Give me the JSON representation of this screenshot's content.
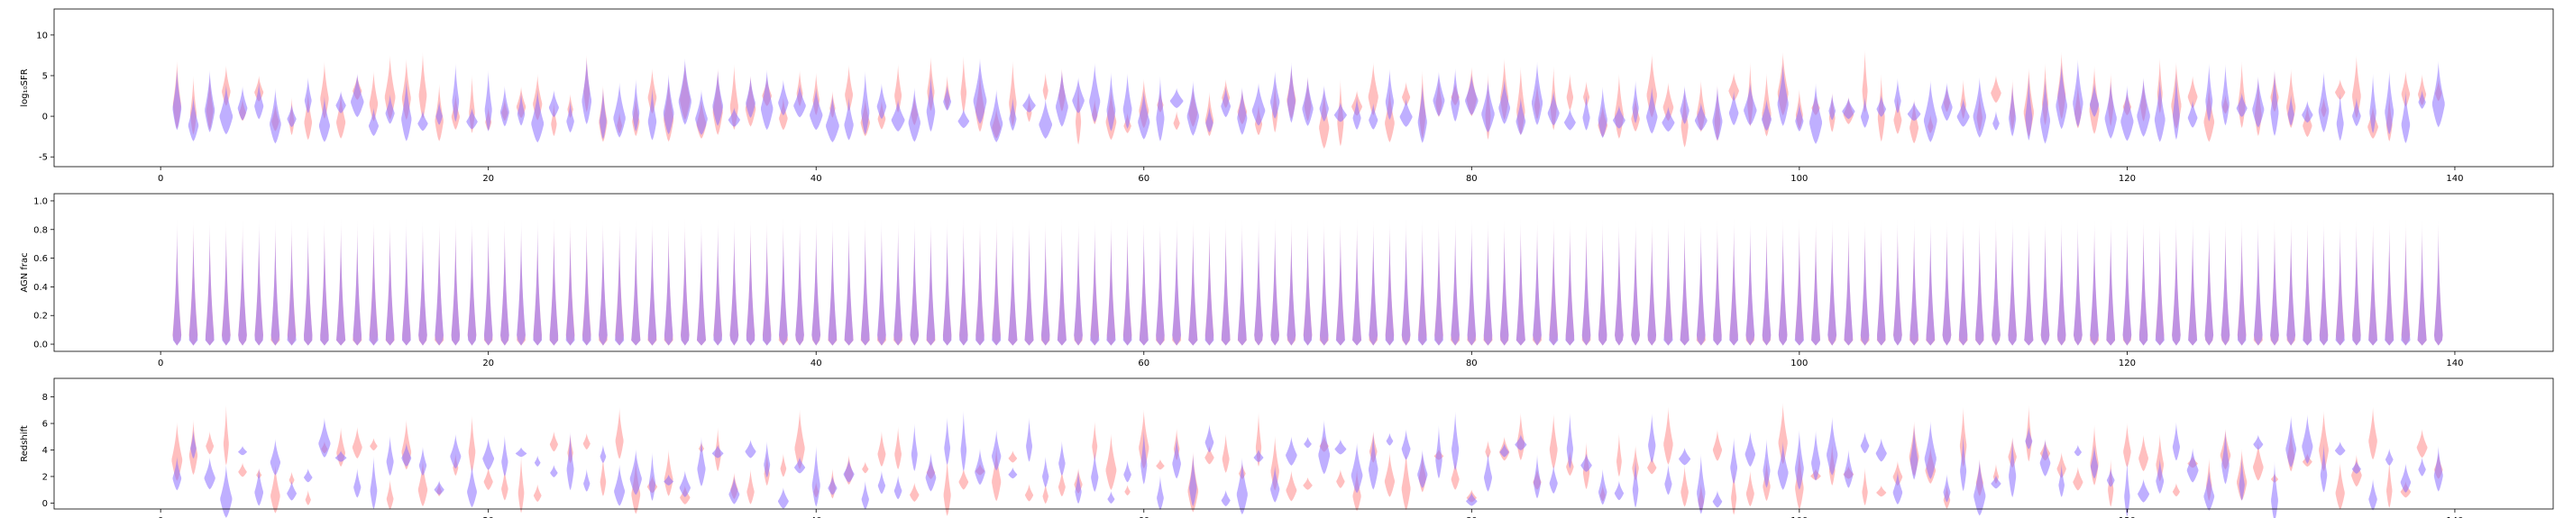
{
  "chart_data": [
    {
      "type": "violin",
      "ylabel": "log₁₀SFR",
      "xlim": [
        -6.5,
        146
      ],
      "ylim": [
        -6.2,
        13.2
      ],
      "xticks": [
        0,
        20,
        40,
        60,
        80,
        100,
        120,
        140
      ],
      "yticks": [
        -5,
        0,
        5,
        10
      ],
      "x": [
        1,
        139
      ],
      "series": [
        {
          "color": "#ff8a8a",
          "median_range": [
            -1.5,
            3.2
          ],
          "max_width": 0.72
        },
        {
          "color": "#8a6dff",
          "median_range": [
            -1.2,
            2.0
          ],
          "max_width": 0.9
        }
      ]
    },
    {
      "type": "violin",
      "ylabel": "AGN frac",
      "xlim": [
        -6.5,
        146
      ],
      "ylim": [
        -0.05,
        1.05
      ],
      "xticks": [
        0,
        20,
        40,
        60,
        80,
        100,
        120,
        140
      ],
      "yticks": [
        0.0,
        0.2,
        0.4,
        0.6,
        0.8,
        1.0
      ],
      "x": [
        1,
        139
      ],
      "series": [
        {
          "color": "#ff8a8a",
          "range": [
            0.0,
            0.9
          ],
          "max_width": 0.72
        },
        {
          "color": "#8a6dff",
          "range": [
            0.0,
            0.9
          ],
          "max_width": 0.72
        }
      ]
    },
    {
      "type": "violin",
      "ylabel": "Redshift",
      "xlim": [
        -6.5,
        146
      ],
      "ylim": [
        -0.45,
        9.4
      ],
      "xticks": [
        0,
        20,
        40,
        60,
        80,
        100,
        120,
        140
      ],
      "yticks": [
        0,
        2,
        4,
        6,
        8
      ],
      "x": [
        1,
        139
      ],
      "series": [
        {
          "color": "#ff8a8a",
          "median_range": [
            0.1,
            4.7
          ],
          "max_width": 0.72
        },
        {
          "color": "#8a6dff",
          "median_range": [
            0.1,
            4.7
          ],
          "max_width": 0.8
        }
      ]
    }
  ]
}
